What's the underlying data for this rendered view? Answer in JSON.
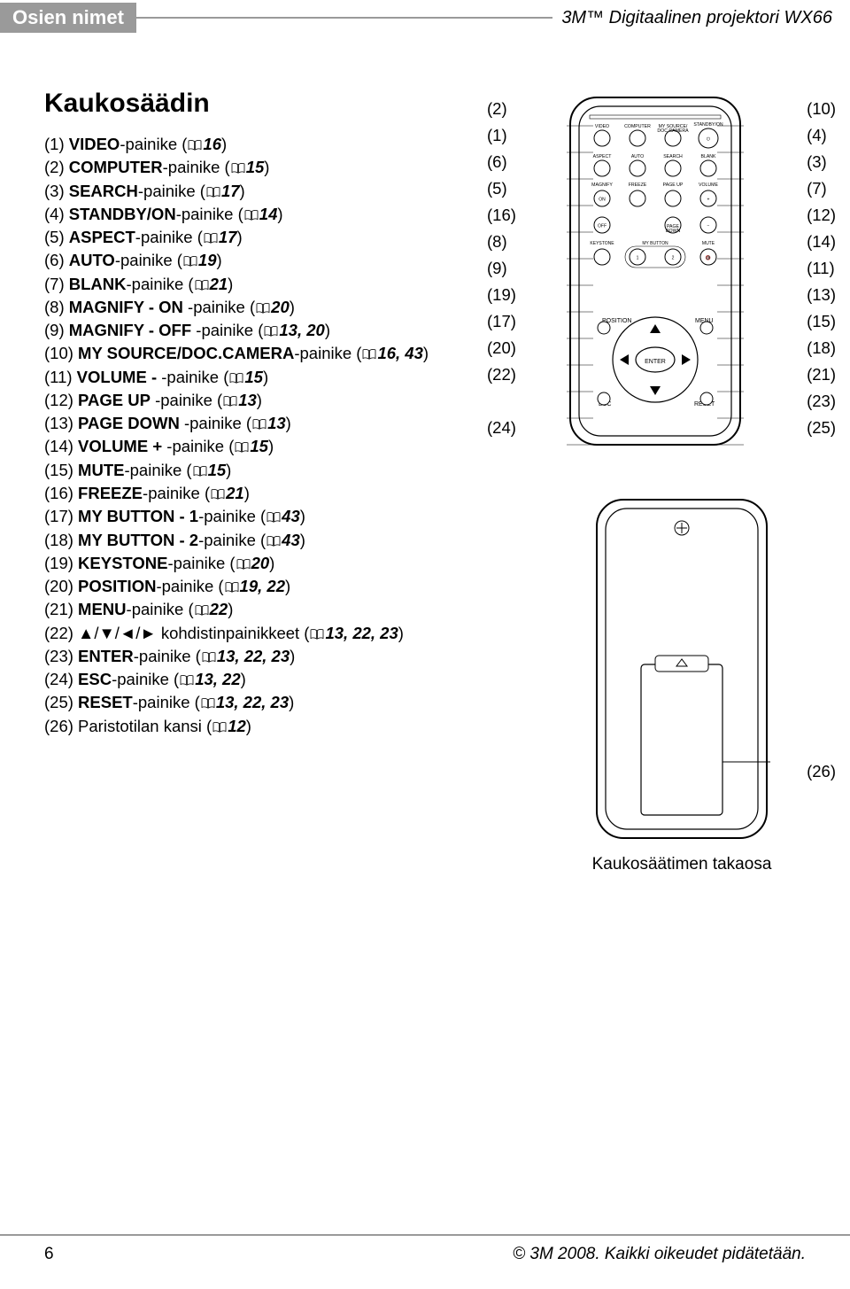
{
  "header": {
    "left": "Osien nimet",
    "right": "3M™ Digitaalinen projektori WX66"
  },
  "title": "Kaukosäädin",
  "items": [
    {
      "num": "(1)",
      "bold": "VIDEO",
      "rest": "-painike",
      "pages": "16"
    },
    {
      "num": "(2)",
      "bold": "COMPUTER",
      "rest": "-painike",
      "pages": "15"
    },
    {
      "num": "(3)",
      "bold": "SEARCH",
      "rest": "-painike",
      "pages": "17"
    },
    {
      "num": "(4)",
      "bold": "STANDBY/ON",
      "rest": "-painike",
      "pages": "14"
    },
    {
      "num": "(5)",
      "bold": "ASPECT",
      "rest": "-painike",
      "pages": "17"
    },
    {
      "num": "(6)",
      "bold": "AUTO",
      "rest": "-painike",
      "pages": "19"
    },
    {
      "num": "(7)",
      "bold": "BLANK",
      "rest": "-painike",
      "pages": "21"
    },
    {
      "num": "(8)",
      "bold": "MAGNIFY - ON",
      "rest": " -painike",
      "pages": "20"
    },
    {
      "num": "(9)",
      "bold": "MAGNIFY - OFF",
      "rest": " -painike",
      "pages": "13, 20"
    },
    {
      "num": "(10)",
      "bold": "MY SOURCE/DOC.CAMERA",
      "rest": "-painike",
      "pages": "16, 43"
    },
    {
      "num": "(11)",
      "bold": "VOLUME -",
      "rest": " -painike",
      "pages": "15"
    },
    {
      "num": "(12)",
      "bold": "PAGE UP",
      "rest": " -painike",
      "pages": "13"
    },
    {
      "num": "(13)",
      "bold": "PAGE DOWN",
      "rest": " -painike",
      "pages": "13"
    },
    {
      "num": "(14)",
      "bold": "VOLUME +",
      "rest": " -painike",
      "pages": "15"
    },
    {
      "num": "(15)",
      "bold": "MUTE",
      "rest": "-painike",
      "pages": "15"
    },
    {
      "num": "(16)",
      "bold": "FREEZE",
      "rest": "-painike",
      "pages": "21"
    },
    {
      "num": "(17)",
      "bold": "MY BUTTON - 1",
      "rest": "-painike",
      "pages": "43"
    },
    {
      "num": "(18)",
      "bold": "MY BUTTON - 2",
      "rest": "-painike",
      "pages": "43"
    },
    {
      "num": "(19)",
      "bold": "KEYSTONE",
      "rest": "-painike",
      "pages": "20"
    },
    {
      "num": "(20)",
      "bold": "POSITION",
      "rest": "-painike",
      "pages": "19, 22"
    },
    {
      "num": "(21)",
      "bold": "MENU",
      "rest": "-painike",
      "pages": "22"
    },
    {
      "num": "(22)",
      "plain": "▲/▼/◄/► kohdistinpainikkeet",
      "pages": "13, 22, 23"
    },
    {
      "num": "(23)",
      "bold": "ENTER",
      "rest": "-painike",
      "pages": "13, 22, 23"
    },
    {
      "num": "(24)",
      "bold": "ESC",
      "rest": "-painike",
      "pages": "13, 22"
    },
    {
      "num": "(25)",
      "bold": "RESET",
      "rest": "-painike",
      "pages": "13, 22, 23"
    },
    {
      "num": "(26)",
      "plain": "Paristotilan kansi",
      "pages": "12"
    }
  ],
  "callouts_left": [
    "(2)",
    "(1)",
    "(6)",
    "(5)",
    "(16)",
    "(8)",
    "(9)",
    "(19)",
    "(17)",
    "(20)",
    "(22)",
    "",
    "(24)"
  ],
  "callouts_right": [
    "(10)",
    "(4)",
    "(3)",
    "(7)",
    "(12)",
    "(14)",
    "(11)",
    "(13)",
    "(15)",
    "(18)",
    "(21)",
    "(23)",
    "(25)"
  ],
  "back_callout": "(26)",
  "back_caption": "Kaukosäätimen takaosa",
  "remote_labels": {
    "r1": [
      "VIDEO",
      "COMPUTER",
      "MY SOURCE/\nDOC.CAMERA",
      "STANDBY/ON"
    ],
    "r2": [
      "ASPECT",
      "AUTO",
      "SEARCH",
      "BLANK"
    ],
    "r3": [
      "MAGNIFY",
      "FREEZE",
      "PAGE UP",
      "VOLUME"
    ],
    "on": "ON",
    "off": "OFF",
    "pgdn": "PAGE\nDOWN",
    "keystone": "KEYSTONE",
    "mybutton": "MY BUTTON",
    "mute": "MUTE",
    "position": "POSITION",
    "menu": "MENU",
    "enter": "ENTER",
    "esc": "ESC",
    "reset": "RESET"
  },
  "footer": {
    "page": "6",
    "copyright": "© 3M 2008. Kaikki oikeudet pidätetään."
  }
}
